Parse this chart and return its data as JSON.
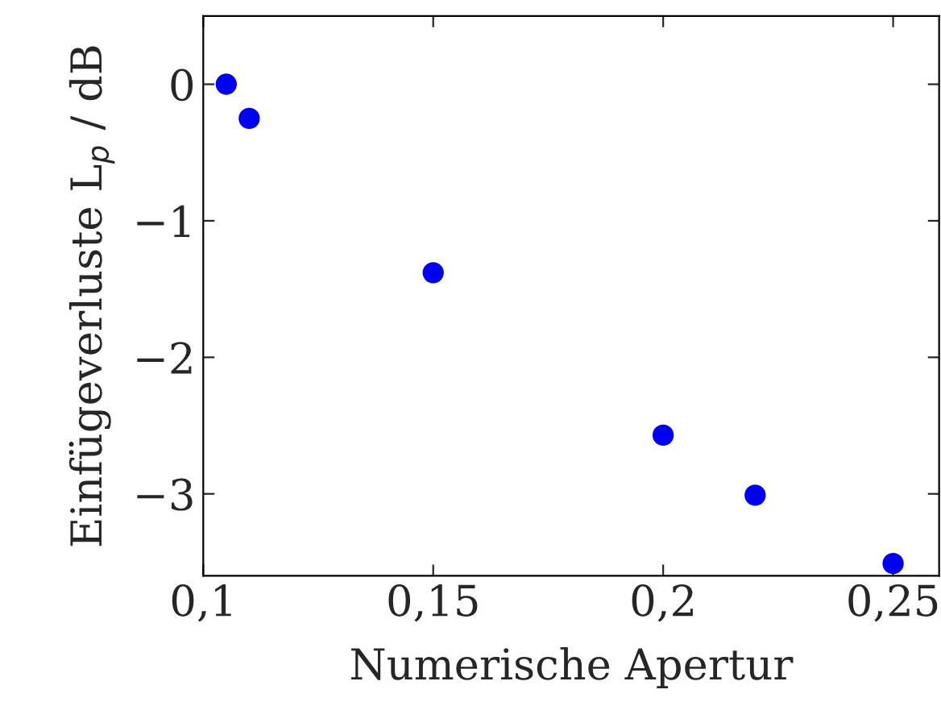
{
  "chart_data": {
    "type": "scatter",
    "xlabel": "Numerische Apertur",
    "ylabel": "Einfügeverluste L$_{p}$ / dB",
    "series": [
      {
        "color": "#0000ee",
        "x": [
          0.105,
          0.11,
          0.15,
          0.2,
          0.22,
          0.25
        ],
        "values": [
          0,
          -0.25,
          -1.38,
          -2.57,
          -3.01,
          -3.51
        ]
      }
    ],
    "marker": "circle",
    "xlim": [
      0.1,
      0.26
    ],
    "ylim": [
      -3.6,
      0.5
    ],
    "xticks": [
      {
        "value": 0.1,
        "label": "0,1"
      },
      {
        "value": 0.15,
        "label": "0,15"
      },
      {
        "value": 0.2,
        "label": "0,2"
      },
      {
        "value": 0.25,
        "label": "0,25"
      }
    ],
    "yticks": [
      {
        "value": -3,
        "label": "−3"
      },
      {
        "value": -2,
        "label": "−2"
      },
      {
        "value": -1,
        "label": "−1"
      },
      0
    ],
    "grid": false
  }
}
